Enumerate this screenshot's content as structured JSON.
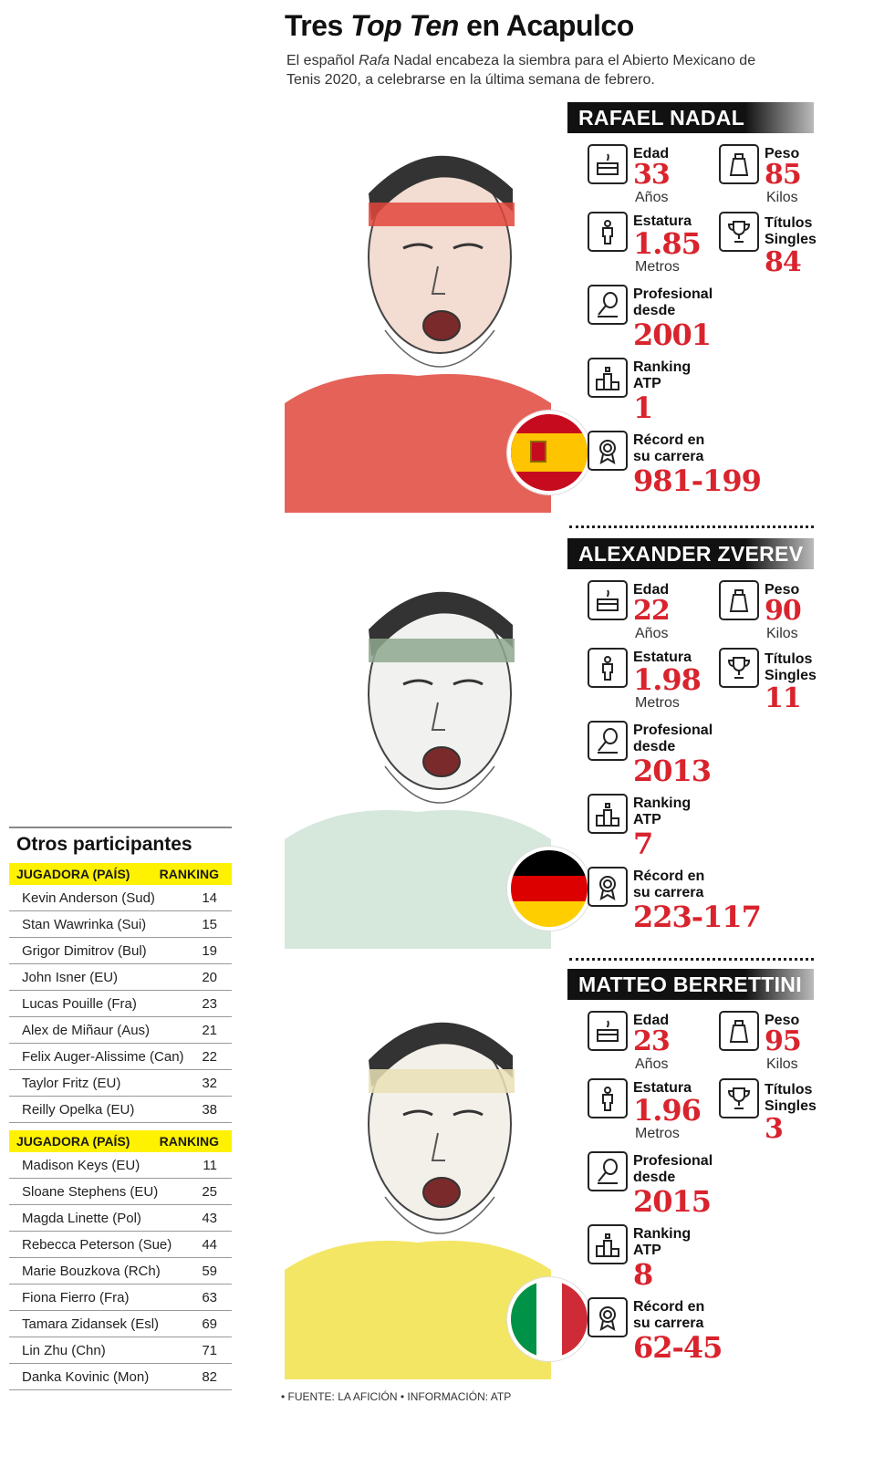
{
  "header": {
    "title_pre": "Tres ",
    "title_italic": "Top Ten",
    "title_post": " en Acapulco",
    "subtitle_pre": "El español ",
    "subtitle_italic": "Rafa",
    "subtitle_post": " Nadal encabeza la siembra para el Abierto Mexicano de Tenis 2020, a celebrarse en la última semana de febrero."
  },
  "labels": {
    "edad": "Edad",
    "anos": "Años",
    "peso": "Peso",
    "kilos": "Kilos",
    "estatura": "Estatura",
    "metros": "Metros",
    "titulos_1": "Títulos",
    "titulos_2": "Singles",
    "profesional_1": "Profesional",
    "profesional_2": "desde",
    "ranking_1": "Ranking",
    "ranking_2": "ATP",
    "record_1": "Récord en",
    "record_2": "su carrera"
  },
  "players": [
    {
      "name": "RAFAEL NADAL",
      "edad": "33",
      "peso": "85",
      "estatura": "1.85",
      "titulos": "84",
      "profesional": "2001",
      "ranking": "1",
      "record": "981-199",
      "flag": "spain-flag",
      "shirt_color": "#e0463c"
    },
    {
      "name": "ALEXANDER ZVEREV",
      "edad": "22",
      "peso": "90",
      "estatura": "1.98",
      "titulos": "11",
      "profesional": "2013",
      "ranking": "7",
      "record": "223-117",
      "flag": "germany-flag",
      "shirt_color": "#cfe3d6"
    },
    {
      "name": "MATTEO BERRETTINI",
      "edad": "23",
      "peso": "95",
      "estatura": "1.96",
      "titulos": "3",
      "profesional": "2015",
      "ranking": "8",
      "record": "62-45",
      "flag": "italy-flag",
      "shirt_color": "#f1e24a"
    }
  ],
  "others": {
    "title": "Otros participantes",
    "header_name": "JUGADORA (PAÍS)",
    "header_rank": "RANKING",
    "men": [
      [
        "Kevin Anderson (Sud)",
        "14"
      ],
      [
        "Stan Wawrinka (Sui)",
        "15"
      ],
      [
        "Grigor Dimitrov (Bul)",
        "19"
      ],
      [
        "John Isner (EU)",
        "20"
      ],
      [
        "Lucas Pouille (Fra)",
        "23"
      ],
      [
        "Alex de Miñaur (Aus)",
        "21"
      ],
      [
        "Felix Auger-Alissime (Can)",
        "22"
      ],
      [
        "Taylor Fritz (EU)",
        "32"
      ],
      [
        "Reilly Opelka (EU)",
        "38"
      ]
    ],
    "women": [
      [
        "Madison Keys (EU)",
        "11"
      ],
      [
        "Sloane Stephens (EU)",
        "25"
      ],
      [
        "Magda Linette (Pol)",
        "43"
      ],
      [
        "Rebecca Peterson (Sue)",
        "44"
      ],
      [
        "Marie Bouzkova (RCh)",
        "59"
      ],
      [
        "Fiona Fierro (Fra)",
        "63"
      ],
      [
        "Tamara Zidansek (Esl)",
        "69"
      ],
      [
        "Lin Zhu (Chn)",
        "71"
      ],
      [
        "Danka Kovinic (Mon)",
        "82"
      ]
    ]
  },
  "source": "• FUENTE: LA AFICIÓN • INFORMACIÓN: ATP",
  "colors": {
    "accent_red": "#d9232d",
    "highlight_yellow": "#fff200",
    "bar_black": "#111111"
  }
}
